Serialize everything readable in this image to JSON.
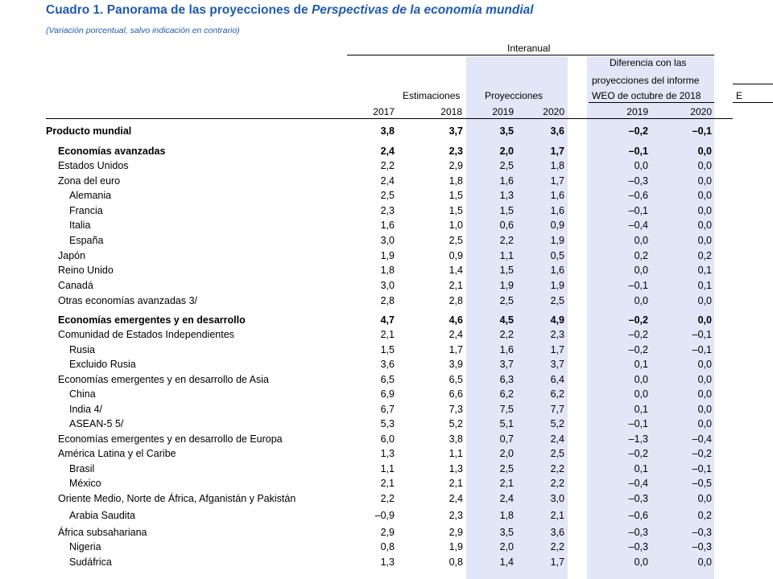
{
  "title": {
    "prefix": "Cuadro 1. Panorama de las proyecciones de ",
    "italic": "Perspectivas de la economía mundial"
  },
  "subtitle": "(Variación porcentual, salvo indicación en contrario)",
  "header": {
    "interanual": "Interanual",
    "estimaciones": "Estimaciones",
    "proyecciones": "Proyecciones",
    "diferencia_line1": "Diferencia con las",
    "diferencia_line2": "proyecciones del informe",
    "diferencia_line3": "WEO de octubre de 2018",
    "cut_letter": "E",
    "years": [
      "2017",
      "2018",
      "2019",
      "2020",
      "2019",
      "2020"
    ]
  },
  "colors": {
    "title": "#1f5bb0",
    "band": "#e3e6f6"
  },
  "rows": [
    {
      "label": "Producto mundial",
      "values": [
        "3,8",
        "3,7",
        "3,5",
        "3,6",
        "–0,2",
        "–0,1"
      ],
      "bold": true,
      "indent": 0
    },
    {
      "label": "Economías avanzadas",
      "values": [
        "2,4",
        "2,3",
        "2,0",
        "1,7",
        "–0,1",
        "0,0"
      ],
      "bold": true,
      "indent": 1
    },
    {
      "label": "Estados Unidos",
      "values": [
        "2,2",
        "2,9",
        "2,5",
        "1,8",
        "0,0",
        "0,0"
      ],
      "bold": false,
      "indent": 1
    },
    {
      "label": "Zona del euro",
      "values": [
        "2,4",
        "1,8",
        "1,6",
        "1,7",
        "–0,3",
        "0,0"
      ],
      "bold": false,
      "indent": 1
    },
    {
      "label": "Alemania",
      "values": [
        "2,5",
        "1,5",
        "1,3",
        "1,6",
        "–0,6",
        "0,0"
      ],
      "bold": false,
      "indent": 2
    },
    {
      "label": "Francia",
      "values": [
        "2,3",
        "1,5",
        "1,5",
        "1,6",
        "–0,1",
        "0,0"
      ],
      "bold": false,
      "indent": 2
    },
    {
      "label": "Italia",
      "values": [
        "1,6",
        "1,0",
        "0,6",
        "0,9",
        "–0,4",
        "0,0"
      ],
      "bold": false,
      "indent": 2
    },
    {
      "label": "España",
      "values": [
        "3,0",
        "2,5",
        "2,2",
        "1,9",
        "0,0",
        "0,0"
      ],
      "bold": false,
      "indent": 2
    },
    {
      "label": "Japón",
      "values": [
        "1,9",
        "0,9",
        "1,1",
        "0,5",
        "0,2",
        "0,2"
      ],
      "bold": false,
      "indent": 1
    },
    {
      "label": "Reino Unido",
      "values": [
        "1,8",
        "1,4",
        "1,5",
        "1,6",
        "0,0",
        "0,1"
      ],
      "bold": false,
      "indent": 1
    },
    {
      "label": "Canadá",
      "values": [
        "3,0",
        "2,1",
        "1,9",
        "1,9",
        "–0,1",
        "0,1"
      ],
      "bold": false,
      "indent": 1
    },
    {
      "label": "Otras economías avanzadas 3/",
      "values": [
        "2,8",
        "2,8",
        "2,5",
        "2,5",
        "0,0",
        "0,0"
      ],
      "bold": false,
      "indent": 1
    },
    {
      "label": "Economías emergentes y en desarrollo",
      "values": [
        "4,7",
        "4,6",
        "4,5",
        "4,9",
        "–0,2",
        "0,0"
      ],
      "bold": true,
      "indent": 1
    },
    {
      "label": "Comunidad de Estados Independientes",
      "values": [
        "2,1",
        "2,4",
        "2,2",
        "2,3",
        "–0,2",
        "–0,1"
      ],
      "bold": false,
      "indent": 1
    },
    {
      "label": "Rusia",
      "values": [
        "1,5",
        "1,7",
        "1,6",
        "1,7",
        "–0,2",
        "–0,1"
      ],
      "bold": false,
      "indent": 2
    },
    {
      "label": "Excluido Rusia",
      "values": [
        "3,6",
        "3,9",
        "3,7",
        "3,7",
        "0,1",
        "0,0"
      ],
      "bold": false,
      "indent": 2
    },
    {
      "label": "Economías emergentes y en desarrollo de Asia",
      "values": [
        "6,5",
        "6,5",
        "6,3",
        "6,4",
        "0,0",
        "0,0"
      ],
      "bold": false,
      "indent": 1
    },
    {
      "label": "China",
      "values": [
        "6,9",
        "6,6",
        "6,2",
        "6,2",
        "0,0",
        "0,0"
      ],
      "bold": false,
      "indent": 2
    },
    {
      "label": "India 4/",
      "values": [
        "6,7",
        "7,3",
        "7,5",
        "7,7",
        "0,1",
        "0,0"
      ],
      "bold": false,
      "indent": 2
    },
    {
      "label": "ASEAN-5 5/",
      "values": [
        "5,3",
        "5,2",
        "5,1",
        "5,2",
        "–0,1",
        "0,0"
      ],
      "bold": false,
      "indent": 2
    },
    {
      "label": "Economías emergentes y en desarrollo de Europa",
      "values": [
        "6,0",
        "3,8",
        "0,7",
        "2,4",
        "–1,3",
        "–0,4"
      ],
      "bold": false,
      "indent": 1
    },
    {
      "label": "América Latina y el Caribe",
      "values": [
        "1,3",
        "1,1",
        "2,0",
        "2,5",
        "–0,2",
        "–0,2"
      ],
      "bold": false,
      "indent": 1
    },
    {
      "label": "Brasil",
      "values": [
        "1,1",
        "1,3",
        "2,5",
        "2,2",
        "0,1",
        "–0,1"
      ],
      "bold": false,
      "indent": 2
    },
    {
      "label": "México",
      "values": [
        "2,1",
        "2,1",
        "2,1",
        "2,2",
        "–0,4",
        "–0,5"
      ],
      "bold": false,
      "indent": 2
    },
    {
      "label": "Oriente Medio, Norte de África, Afganistán y Pakistán",
      "values": [
        "2,2",
        "2,4",
        "2,4",
        "3,0",
        "–0,3",
        "0,0"
      ],
      "bold": false,
      "indent": 1
    },
    {
      "label": "Arabia Saudita",
      "values": [
        "–0,9",
        "2,3",
        "1,8",
        "2,1",
        "–0,6",
        "0,2"
      ],
      "bold": false,
      "indent": 2
    },
    {
      "label": "África subsahariana",
      "values": [
        "2,9",
        "2,9",
        "3,5",
        "3,6",
        "–0,3",
        "–0,3"
      ],
      "bold": false,
      "indent": 1
    },
    {
      "label": "Nigeria",
      "values": [
        "0,8",
        "1,9",
        "2,0",
        "2,2",
        "–0,3",
        "–0,3"
      ],
      "bold": false,
      "indent": 2
    },
    {
      "label": "Sudáfrica",
      "values": [
        "1,3",
        "0,8",
        "1,4",
        "1,7",
        "0,0",
        "0,0"
      ],
      "bold": false,
      "indent": 2
    }
  ]
}
